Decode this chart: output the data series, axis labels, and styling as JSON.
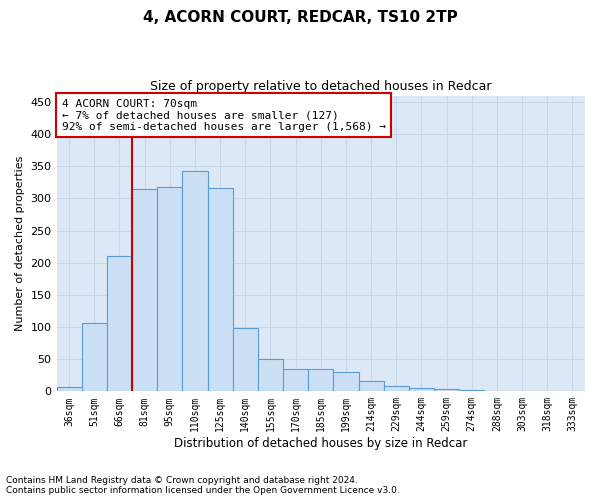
{
  "title1": "4, ACORN COURT, REDCAR, TS10 2TP",
  "title2": "Size of property relative to detached houses in Redcar",
  "xlabel": "Distribution of detached houses by size in Redcar",
  "ylabel": "Number of detached properties",
  "categories": [
    "36sqm",
    "51sqm",
    "66sqm",
    "81sqm",
    "95sqm",
    "110sqm",
    "125sqm",
    "140sqm",
    "155sqm",
    "170sqm",
    "185sqm",
    "199sqm",
    "214sqm",
    "229sqm",
    "244sqm",
    "259sqm",
    "274sqm",
    "288sqm",
    "303sqm",
    "318sqm",
    "333sqm"
  ],
  "values": [
    7,
    106,
    210,
    315,
    318,
    343,
    317,
    98,
    50,
    35,
    35,
    30,
    16,
    9,
    5,
    4,
    2,
    1,
    1,
    1,
    1
  ],
  "bar_color": "#cce0f5",
  "bar_edge_color": "#5b9bd5",
  "vline_x_idx": 2,
  "vline_color": "#cc0000",
  "annotation_text": "4 ACORN COURT: 70sqm\n← 7% of detached houses are smaller (127)\n92% of semi-detached houses are larger (1,568) →",
  "annotation_box_color": "#ffffff",
  "annotation_box_edge": "#cc0000",
  "ylim": [
    0,
    460
  ],
  "yticks": [
    0,
    50,
    100,
    150,
    200,
    250,
    300,
    350,
    400,
    450
  ],
  "grid_color": "#c8d8ea",
  "background_color": "#dce8f5",
  "footnote1": "Contains HM Land Registry data © Crown copyright and database right 2024.",
  "footnote2": "Contains public sector information licensed under the Open Government Licence v3.0."
}
